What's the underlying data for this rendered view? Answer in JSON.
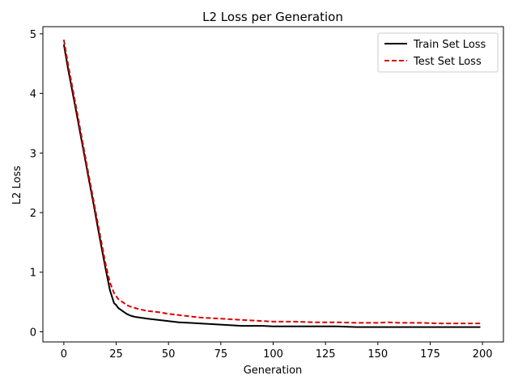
{
  "chart_data": {
    "type": "line",
    "title": "L2 Loss per Generation",
    "xlabel": "Generation",
    "ylabel": "L2 Loss",
    "xlim": [
      -10,
      210
    ],
    "ylim": [
      -0.17,
      5.12
    ],
    "xticks": [
      0,
      25,
      50,
      75,
      100,
      125,
      150,
      175,
      200
    ],
    "yticks": [
      0,
      1,
      2,
      3,
      4,
      5
    ],
    "grid": false,
    "legend": "top-right",
    "series": [
      {
        "name": "Train Set Loss",
        "color": "#000000",
        "style": "solid",
        "x": [
          0,
          2,
          4,
          6,
          8,
          10,
          12,
          14,
          16,
          18,
          20,
          22,
          24,
          25,
          26,
          28,
          30,
          32,
          34,
          36,
          40,
          45,
          50,
          55,
          60,
          65,
          70,
          75,
          80,
          85,
          90,
          95,
          100,
          110,
          120,
          130,
          140,
          150,
          160,
          170,
          180,
          190,
          199
        ],
        "y": [
          4.82,
          4.42,
          4.05,
          3.68,
          3.3,
          2.93,
          2.55,
          2.18,
          1.8,
          1.42,
          1.05,
          0.7,
          0.48,
          0.45,
          0.4,
          0.35,
          0.3,
          0.27,
          0.25,
          0.24,
          0.22,
          0.2,
          0.18,
          0.16,
          0.15,
          0.14,
          0.13,
          0.12,
          0.11,
          0.1,
          0.1,
          0.1,
          0.09,
          0.09,
          0.09,
          0.09,
          0.08,
          0.08,
          0.08,
          0.08,
          0.08,
          0.08,
          0.08
        ]
      },
      {
        "name": "Test Set Loss",
        "color": "#dd0000",
        "style": "dashed",
        "x": [
          0,
          2,
          4,
          6,
          8,
          10,
          12,
          14,
          16,
          18,
          20,
          22,
          24,
          26,
          28,
          30,
          32,
          34,
          36,
          40,
          45,
          50,
          55,
          60,
          65,
          70,
          75,
          80,
          85,
          90,
          95,
          100,
          110,
          120,
          130,
          140,
          150,
          155,
          160,
          170,
          180,
          190,
          199
        ],
        "y": [
          4.9,
          4.5,
          4.12,
          3.75,
          3.37,
          2.99,
          2.61,
          2.24,
          1.87,
          1.5,
          1.13,
          0.83,
          0.65,
          0.55,
          0.5,
          0.45,
          0.42,
          0.4,
          0.38,
          0.35,
          0.33,
          0.3,
          0.28,
          0.26,
          0.24,
          0.23,
          0.22,
          0.21,
          0.2,
          0.19,
          0.18,
          0.17,
          0.17,
          0.16,
          0.16,
          0.15,
          0.15,
          0.16,
          0.15,
          0.15,
          0.14,
          0.14,
          0.14
        ]
      }
    ]
  }
}
